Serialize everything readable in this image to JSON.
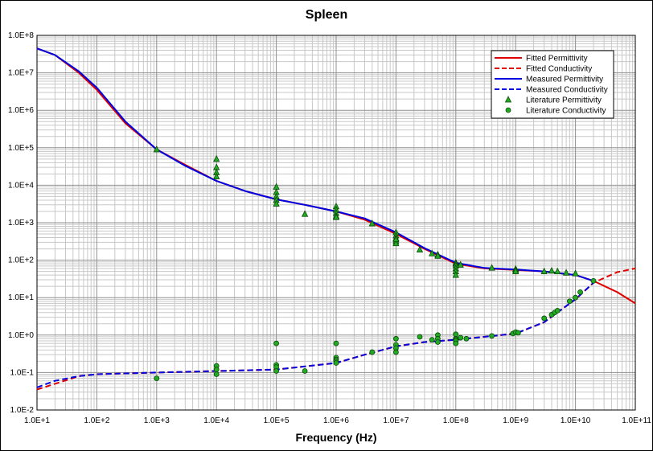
{
  "chart_data": {
    "type": "line",
    "title": "Spleen",
    "xlabel": "Frequency (Hz)",
    "ylabel": "",
    "x_scale": "log",
    "y_scale": "log",
    "xlim": [
      10,
      100000000000
    ],
    "ylim": [
      0.01,
      100000000
    ],
    "grid": true,
    "legend_position": "top-right",
    "x_tick_labels": [
      "1.0E+1",
      "1.0E+2",
      "1.0E+3",
      "1.0E+4",
      "1.0E+5",
      "1.0E+6",
      "1.0E+7",
      "1.0E+8",
      "1.0E+9",
      "1.0E+10",
      "1.0E+11"
    ],
    "y_tick_labels": [
      "1.0E-2",
      "1.0E-1",
      "1.0E+0",
      "1.0E+1",
      "1.0E+2",
      "1.0E+3",
      "1.0E+4",
      "1.0E+5",
      "1.0E+6",
      "1.0E+7",
      "1.0E+8"
    ],
    "series": [
      {
        "name": "Fitted Permittivity",
        "style": "line",
        "color": "#e00000",
        "dash": false,
        "x": [
          10,
          20,
          50,
          100,
          300,
          1000,
          3000,
          10000,
          30000,
          100000,
          300000,
          1000000,
          3000000,
          10000000,
          30000000,
          100000000,
          300000000,
          1000000000,
          3000000000,
          10000000000,
          20000000000,
          50000000000,
          100000000000
        ],
        "y": [
          45000000,
          30000000,
          10000000,
          3500000,
          450000,
          90000,
          35000,
          13000,
          7000,
          4200,
          3000,
          2000,
          1200,
          500,
          200,
          80,
          60,
          55,
          50,
          40,
          28,
          14,
          7
        ]
      },
      {
        "name": "Fitted Conductivity",
        "style": "line",
        "color": "#e00000",
        "dash": true,
        "x": [
          10,
          20,
          50,
          100,
          1000,
          10000,
          100000,
          1000000,
          3000000,
          10000000,
          30000000,
          100000000,
          1000000000,
          3000000000,
          10000000000,
          20000000000,
          50000000000,
          100000000000
        ],
        "y": [
          0.035,
          0.05,
          0.08,
          0.09,
          0.1,
          0.11,
          0.12,
          0.18,
          0.3,
          0.5,
          0.65,
          0.75,
          1.1,
          2.2,
          9,
          25,
          48,
          60
        ]
      },
      {
        "name": "Measured Permittivity",
        "style": "line",
        "color": "#0000e0",
        "dash": false,
        "x": [
          10,
          20,
          50,
          100,
          300,
          1000,
          3000,
          10000,
          30000,
          100000,
          300000,
          1000000,
          3000000,
          10000000,
          30000000,
          100000000,
          300000000,
          1000000000,
          3000000000,
          10000000000,
          20000000000
        ],
        "y": [
          45000000,
          30000000,
          11000000,
          4000000,
          500000,
          90000,
          33000,
          13000,
          7000,
          4200,
          3000,
          2000,
          1300,
          550,
          210,
          85,
          62,
          56,
          50,
          40,
          28
        ]
      },
      {
        "name": "Measured Conductivity",
        "style": "line",
        "color": "#0000e0",
        "dash": true,
        "x": [
          10,
          20,
          50,
          100,
          1000,
          10000,
          100000,
          1000000,
          3000000,
          10000000,
          30000000,
          100000000,
          1000000000,
          3000000000,
          10000000000,
          20000000000
        ],
        "y": [
          0.04,
          0.06,
          0.08,
          0.09,
          0.1,
          0.11,
          0.12,
          0.18,
          0.3,
          0.5,
          0.65,
          0.75,
          1.1,
          2.2,
          9,
          25
        ]
      },
      {
        "name": "Literature Permittivity",
        "style": "markers",
        "marker": "triangle",
        "color": "#22aa22",
        "x": [
          1000,
          10000,
          10000,
          10000,
          10000,
          100000,
          100000,
          100000,
          100000,
          100000,
          300000,
          1000000,
          1000000,
          1000000,
          1000000,
          1000000,
          4000000,
          10000000,
          10000000,
          10000000,
          10000000,
          10000000,
          10000000,
          25000000,
          40000000,
          50000000,
          50000000,
          100000000,
          100000000,
          100000000,
          100000000,
          100000000,
          100000000,
          120000000,
          400000000,
          1000000000,
          1000000000,
          1000000000,
          3000000000,
          4000000000,
          5000000000,
          7000000000,
          10000000000
        ],
        "y": [
          90000,
          50000,
          30000,
          22000,
          17000,
          9000,
          6500,
          5000,
          4000,
          3200,
          1700,
          2700,
          2200,
          1800,
          1500,
          1400,
          950,
          550,
          450,
          380,
          320,
          280,
          360,
          190,
          150,
          140,
          130,
          85,
          80,
          72,
          60,
          50,
          40,
          75,
          62,
          58,
          55,
          50,
          50,
          52,
          50,
          46,
          44
        ]
      },
      {
        "name": "Literature Conductivity",
        "style": "markers",
        "marker": "circle",
        "color": "#22aa22",
        "x": [
          1000,
          10000,
          10000,
          10000,
          100000,
          100000,
          100000,
          100000,
          300000,
          1000000,
          1000000,
          1000000,
          1000000,
          1000000,
          4000000,
          10000000,
          10000000,
          10000000,
          10000000,
          25000000,
          40000000,
          50000000,
          50000000,
          50000000,
          100000000,
          100000000,
          100000000,
          100000000,
          100000000,
          120000000,
          150000000,
          400000000,
          900000000,
          1000000000,
          1100000000,
          3000000000,
          4000000000,
          4500000000,
          5000000000,
          8000000000,
          10000000000,
          12000000000,
          20000000000
        ],
        "y": [
          0.07,
          0.15,
          0.12,
          0.09,
          0.6,
          0.16,
          0.14,
          0.11,
          0.11,
          0.6,
          0.25,
          0.22,
          0.2,
          0.18,
          0.35,
          0.8,
          0.55,
          0.45,
          0.35,
          0.9,
          0.75,
          1.0,
          0.8,
          0.65,
          1.05,
          0.8,
          0.75,
          0.7,
          0.6,
          0.85,
          0.8,
          0.95,
          1.1,
          1.2,
          1.15,
          2.8,
          3.5,
          4.0,
          4.5,
          8.0,
          10,
          14,
          28
        ]
      }
    ]
  }
}
